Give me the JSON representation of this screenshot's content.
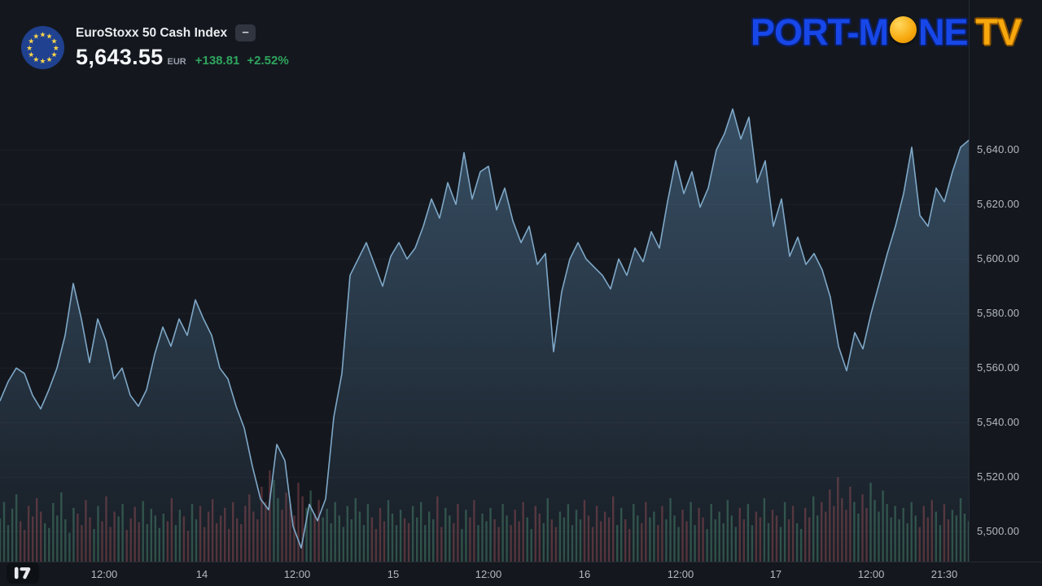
{
  "header": {
    "symbol_name": "EuroStoxx 50 Cash Index",
    "collapse_button": "–",
    "price": "5,643.55",
    "currency": "EUR",
    "change_abs": "+138.81",
    "change_pct": "+2.52%"
  },
  "logo": {
    "part1": "PORT-M",
    "part2": "NE",
    "part3": "TV",
    "moon_icon": "moon-icon"
  },
  "attribution": {
    "icon": "tradingview-logo"
  },
  "colors": {
    "bg": "#14181e",
    "panel_border": "#262b33",
    "grid": "rgba(255,255,255,0.045)",
    "axis_text": "#b4b8c0",
    "title_text": "#e9ebef",
    "price_text": "#f4f6f9",
    "muted_text": "#9aa0ab",
    "green": "#2fa45e",
    "line": "#7fa8c8",
    "area_top": "rgba(84,124,158,0.55)",
    "area_bottom": "rgba(84,124,158,0.05)",
    "vol_up": "rgba(98,190,148,0.32)",
    "vol_down": "rgba(226,106,112,0.30)",
    "chip_bg": "#31353f",
    "chip_text": "#d8dade",
    "flag_bg": "#20418f",
    "flag_star": "#fcd64a",
    "logo_blue": "#1747e8",
    "logo_outline": "#0a1e66",
    "logo_orange": "#f7a80d",
    "logo_orange_dark": "#8a5200",
    "attr_bg": "#0d1015",
    "attr_fg": "#e8eaed"
  },
  "chart_data": {
    "type": "area",
    "title": "EuroStoxx 50 Cash Index",
    "xlabel": "",
    "ylabel": "",
    "currency": "EUR",
    "last_price": 5643.55,
    "change_abs": 138.81,
    "change_pct": 2.52,
    "grid": true,
    "legend": "none",
    "y_domain": [
      5489,
      5695
    ],
    "y_ticks": [
      {
        "v": 5640,
        "label": "5,640.00"
      },
      {
        "v": 5620,
        "label": "5,620.00"
      },
      {
        "v": 5600,
        "label": "5,600.00"
      },
      {
        "v": 5580,
        "label": "5,580.00"
      },
      {
        "v": 5560,
        "label": "5,560.00"
      },
      {
        "v": 5540,
        "label": "5,540.00"
      },
      {
        "v": 5520,
        "label": "5,520.00"
      },
      {
        "v": 5500,
        "label": "5,500.00"
      }
    ],
    "x_ticks": [
      {
        "pos": 0.1076,
        "label": "12:00"
      },
      {
        "pos": 0.2084,
        "label": "14"
      },
      {
        "pos": 0.3067,
        "label": "12:00"
      },
      {
        "pos": 0.4059,
        "label": "15"
      },
      {
        "pos": 0.5042,
        "label": "12:00"
      },
      {
        "pos": 0.6034,
        "label": "16"
      },
      {
        "pos": 0.7025,
        "label": "12:00"
      },
      {
        "pos": 0.8008,
        "label": "17"
      },
      {
        "pos": 0.8992,
        "label": "12:00"
      },
      {
        "pos": 0.9748,
        "label": "21:30"
      }
    ],
    "prices": [
      5548,
      5555,
      5560,
      5558,
      5550,
      5545,
      5552,
      5560,
      5572,
      5591,
      5578,
      5562,
      5578,
      5570,
      5556,
      5560,
      5550,
      5546,
      5552,
      5565,
      5575,
      5568,
      5578,
      5572,
      5585,
      5578,
      5572,
      5560,
      5556,
      5546,
      5538,
      5524,
      5512,
      5508,
      5532,
      5526,
      5502,
      5494,
      5510,
      5504,
      5512,
      5542,
      5558,
      5594,
      5600,
      5606,
      5598,
      5590,
      5601,
      5606,
      5600,
      5604,
      5612,
      5622,
      5615,
      5628,
      5620,
      5639,
      5622,
      5632,
      5634,
      5618,
      5626,
      5614,
      5606,
      5612,
      5598,
      5602,
      5566,
      5588,
      5600,
      5606,
      5600,
      5597,
      5594,
      5589,
      5600,
      5594,
      5604,
      5599,
      5610,
      5604,
      5621,
      5636,
      5624,
      5632,
      5619,
      5626,
      5640,
      5646,
      5655,
      5644,
      5652,
      5628,
      5636,
      5612,
      5622,
      5601,
      5608,
      5598,
      5602,
      5596,
      5586,
      5568,
      5559,
      5573,
      5567,
      5580,
      5591,
      5602,
      5612,
      5624,
      5641,
      5616,
      5612,
      5626,
      5621,
      5632,
      5641,
      5643.55
    ],
    "volume": [
      0.45,
      0.62,
      0.38,
      0.55,
      0.7,
      0.42,
      0.33,
      0.58,
      0.47,
      0.66,
      0.52,
      0.4,
      0.35,
      0.61,
      0.48,
      0.72,
      0.44,
      0.3,
      0.56,
      0.5,
      0.38,
      0.64,
      0.46,
      0.34,
      0.58,
      0.42,
      0.68,
      0.36,
      0.52,
      0.47,
      0.6,
      0.33,
      0.45,
      0.57,
      0.41,
      0.63,
      0.39,
      0.55,
      0.48,
      0.35,
      0.5,
      0.42,
      0.66,
      0.38,
      0.54,
      0.47,
      0.32,
      0.6,
      0.44,
      0.58,
      0.36,
      0.52,
      0.65,
      0.4,
      0.48,
      0.56,
      0.34,
      0.62,
      0.45,
      0.39,
      0.58,
      0.7,
      0.52,
      0.44,
      0.78,
      0.62,
      0.95,
      0.85,
      0.66,
      0.54,
      0.72,
      0.6,
      0.48,
      0.82,
      0.68,
      0.56,
      0.74,
      0.5,
      0.64,
      0.46,
      0.55,
      0.4,
      0.62,
      0.48,
      0.36,
      0.58,
      0.44,
      0.66,
      0.52,
      0.38,
      0.6,
      0.46,
      0.34,
      0.56,
      0.42,
      0.64,
      0.5,
      0.38,
      0.54,
      0.45,
      0.4,
      0.58,
      0.46,
      0.62,
      0.38,
      0.52,
      0.44,
      0.68,
      0.36,
      0.56,
      0.48,
      0.4,
      0.6,
      0.34,
      0.54,
      0.46,
      0.64,
      0.38,
      0.5,
      0.42,
      0.56,
      0.44,
      0.36,
      0.6,
      0.48,
      0.38,
      0.54,
      0.42,
      0.62,
      0.46,
      0.34,
      0.58,
      0.5,
      0.4,
      0.66,
      0.44,
      0.36,
      0.52,
      0.46,
      0.6,
      0.38,
      0.54,
      0.44,
      0.64,
      0.48,
      0.36,
      0.58,
      0.42,
      0.52,
      0.46,
      0.68,
      0.38,
      0.56,
      0.44,
      0.34,
      0.6,
      0.48,
      0.4,
      0.62,
      0.46,
      0.52,
      0.38,
      0.58,
      0.44,
      0.66,
      0.48,
      0.36,
      0.54,
      0.42,
      0.62,
      0.38,
      0.56,
      0.46,
      0.34,
      0.6,
      0.44,
      0.52,
      0.4,
      0.64,
      0.48,
      0.36,
      0.56,
      0.44,
      0.6,
      0.38,
      0.52,
      0.46,
      0.66,
      0.4,
      0.54,
      0.48,
      0.36,
      0.62,
      0.44,
      0.58,
      0.4,
      0.34,
      0.56,
      0.46,
      0.68,
      0.48,
      0.62,
      0.52,
      0.75,
      0.58,
      0.88,
      0.66,
      0.54,
      0.78,
      0.62,
      0.5,
      0.7,
      0.56,
      0.82,
      0.64,
      0.52,
      0.74,
      0.6,
      0.46,
      0.58,
      0.44,
      0.56,
      0.4,
      0.62,
      0.48,
      0.36,
      0.58,
      0.46,
      0.64,
      0.52,
      0.38,
      0.6,
      0.44,
      0.54,
      0.48,
      0.66,
      0.5,
      0.42
    ]
  }
}
